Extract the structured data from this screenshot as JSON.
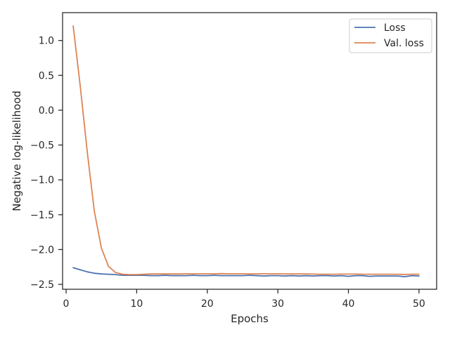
{
  "chart_data": {
    "type": "line",
    "xlabel": "Epochs",
    "ylabel": "Negative log-likelihood",
    "xlim": [
      -0.5,
      52.5
    ],
    "ylim": [
      -2.57,
      1.4
    ],
    "x_ticks": [
      0,
      10,
      20,
      30,
      40,
      50
    ],
    "x_tick_labels": [
      "0",
      "10",
      "20",
      "30",
      "40",
      "50"
    ],
    "y_ticks": [
      1.0,
      0.5,
      0.0,
      -0.5,
      -1.0,
      -1.5,
      -2.0,
      -2.5
    ],
    "y_tick_labels": [
      "1.0",
      "0.5",
      "0.0",
      "−0.5",
      "−1.0",
      "−1.5",
      "−2.0",
      "−2.5"
    ],
    "grid": false,
    "legend_position": "top-right",
    "x": [
      1,
      2,
      3,
      4,
      5,
      6,
      7,
      8,
      9,
      10,
      11,
      12,
      13,
      14,
      15,
      16,
      17,
      18,
      19,
      20,
      21,
      22,
      23,
      24,
      25,
      26,
      27,
      28,
      29,
      30,
      31,
      32,
      33,
      34,
      35,
      36,
      37,
      38,
      39,
      40,
      41,
      42,
      43,
      44,
      45,
      46,
      47,
      48,
      49,
      50
    ],
    "series": [
      {
        "name": "Loss",
        "color": "#4c72b0",
        "values": [
          -2.26,
          -2.29,
          -2.32,
          -2.34,
          -2.35,
          -2.355,
          -2.36,
          -2.37,
          -2.37,
          -2.37,
          -2.37,
          -2.375,
          -2.375,
          -2.37,
          -2.375,
          -2.375,
          -2.375,
          -2.37,
          -2.375,
          -2.375,
          -2.37,
          -2.375,
          -2.375,
          -2.375,
          -2.375,
          -2.37,
          -2.375,
          -2.38,
          -2.375,
          -2.375,
          -2.38,
          -2.375,
          -2.38,
          -2.375,
          -2.38,
          -2.375,
          -2.375,
          -2.38,
          -2.375,
          -2.385,
          -2.375,
          -2.375,
          -2.385,
          -2.38,
          -2.38,
          -2.38,
          -2.38,
          -2.39,
          -2.375,
          -2.38
        ]
      },
      {
        "name": "Val. loss",
        "color": "#dd8452",
        "values": [
          1.21,
          0.35,
          -0.6,
          -1.45,
          -1.98,
          -2.24,
          -2.33,
          -2.355,
          -2.36,
          -2.36,
          -2.355,
          -2.35,
          -2.35,
          -2.35,
          -2.35,
          -2.35,
          -2.348,
          -2.348,
          -2.348,
          -2.348,
          -2.348,
          -2.345,
          -2.348,
          -2.348,
          -2.348,
          -2.35,
          -2.35,
          -2.348,
          -2.348,
          -2.348,
          -2.35,
          -2.35,
          -2.35,
          -2.35,
          -2.352,
          -2.355,
          -2.355,
          -2.355,
          -2.352,
          -2.352,
          -2.352,
          -2.355,
          -2.355,
          -2.355,
          -2.355,
          -2.355,
          -2.355,
          -2.358,
          -2.355,
          -2.355
        ]
      }
    ]
  }
}
